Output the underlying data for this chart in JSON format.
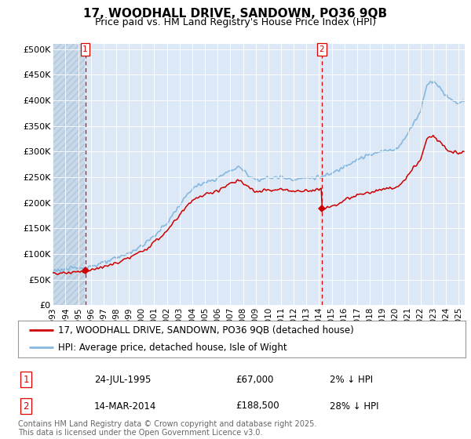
{
  "title": "17, WOODHALL DRIVE, SANDOWN, PO36 9QB",
  "subtitle": "Price paid vs. HM Land Registry's House Price Index (HPI)",
  "legend_line1": "17, WOODHALL DRIVE, SANDOWN, PO36 9QB (detached house)",
  "legend_line2": "HPI: Average price, detached house, Isle of Wight",
  "ylabel_ticks": [
    "£0",
    "£50K",
    "£100K",
    "£150K",
    "£200K",
    "£250K",
    "£300K",
    "£350K",
    "£400K",
    "£450K",
    "£500K"
  ],
  "ytick_vals": [
    0,
    50000,
    100000,
    150000,
    200000,
    250000,
    300000,
    350000,
    400000,
    450000,
    500000
  ],
  "ylim": [
    0,
    510000
  ],
  "xlim_start": 1993.0,
  "xlim_end": 2025.5,
  "sale1_year": 1995.56,
  "sale1_price": 67000,
  "sale2_year": 2014.21,
  "sale2_price": 188500,
  "sale_color": "#cc0000",
  "hpi_color": "#85b8e0",
  "annotation_vline_color": "#dd0000",
  "background_plot": "#dce8f5",
  "background_fig": "#ffffff",
  "grid_color": "#ffffff",
  "hatch_color": "#c8d8e8",
  "ann1_date": "24-JUL-1995",
  "ann1_price": "£67,000",
  "ann1_pct": "2% ↓ HPI",
  "ann2_date": "14-MAR-2014",
  "ann2_price": "£188,500",
  "ann2_pct": "28% ↓ HPI",
  "footer": "Contains HM Land Registry data © Crown copyright and database right 2025.\nThis data is licensed under the Open Government Licence v3.0.",
  "title_fontsize": 11,
  "subtitle_fontsize": 9,
  "tick_fontsize": 8,
  "legend_fontsize": 8.5,
  "ann_fontsize": 8.5,
  "footer_fontsize": 7
}
